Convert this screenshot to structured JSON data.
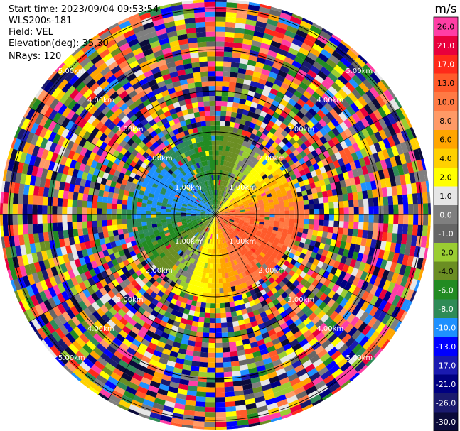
{
  "header": {
    "start_time": "Start time: 2023/09/04 09:53:54",
    "instrument": "WLS200s-181",
    "field": "Field: VEL",
    "elevation": "Elevation(deg): 35.30",
    "nrays": "NRays: 120"
  },
  "chart_data": {
    "type": "heatmap",
    "subtype": "ppi-polar",
    "title": "",
    "field": "VEL",
    "nrays": 120,
    "elevation_deg": 35.3,
    "range_rings": [
      {
        "range_km": 1.0,
        "label": "1.00km"
      },
      {
        "range_km": 2.0,
        "label": "2.00km"
      },
      {
        "range_km": 3.0,
        "label": "3.00km"
      },
      {
        "range_km": 4.0,
        "label": "4.00km"
      },
      {
        "range_km": 5.0,
        "label": "5.00km"
      }
    ],
    "colorbar": {
      "unit": "m/s",
      "ticks": [
        "26.0",
        "21.0",
        "17.0",
        "13.0",
        "10.0",
        "8.0",
        "6.0",
        "4.0",
        "2.0",
        "1.0",
        "0.0",
        "-1.0",
        "-2.0",
        "-4.0",
        "-6.0",
        "-8.0",
        "-10.0",
        "-13.0",
        "-17.0",
        "-21.0",
        "-26.0",
        "-30.0"
      ],
      "colors": [
        "#ff3ea5",
        "#e8003c",
        "#ff2a1a",
        "#ff5a2a",
        "#ff7a44",
        "#ff9a66",
        "#ffa500",
        "#ffd000",
        "#ffff00",
        "#e6e6e6",
        "#7f7f7f",
        "#666666",
        "#9acd32",
        "#6b8e23",
        "#228b22",
        "#2e8b57",
        "#1e90ff",
        "#0000ff",
        "#1a1ab0",
        "#000080",
        "#1a1a6e",
        "#0b0b3a"
      ]
    },
    "coherent_region": {
      "max_range_km": 2.3,
      "toward_sector_colors": [
        "#1e90ff",
        "#2e8b57",
        "#228b22",
        "#6b8e23"
      ],
      "away_sector_colors": [
        "#ff5a2a",
        "#ff7a44",
        "#ffa500",
        "#ffd000",
        "#ffff00"
      ]
    }
  }
}
